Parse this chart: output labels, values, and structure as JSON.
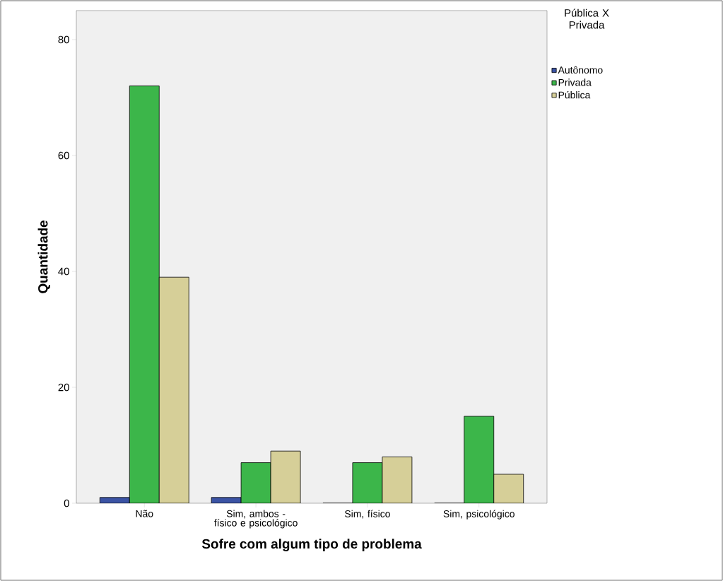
{
  "chart_data": {
    "type": "bar",
    "xlabel": "Sofre com algum tipo de problema",
    "ylabel": "Quantidade",
    "legend_title": "Pública X Privada",
    "categories": [
      "Não",
      "Sim, ambos - físico e psicológico",
      "Sim, físico",
      "Sim, psicológico"
    ],
    "series": [
      {
        "name": "Autônomo",
        "color": "#3b53a4",
        "values": [
          1,
          1,
          0,
          0
        ]
      },
      {
        "name": "Privada",
        "color": "#3cb64a",
        "values": [
          72,
          7,
          7,
          15
        ]
      },
      {
        "name": "Pública",
        "color": "#d6cf98",
        "values": [
          39,
          9,
          8,
          5
        ]
      }
    ],
    "ylim": [
      0,
      85
    ],
    "yticks": [
      0,
      20,
      40,
      60,
      80
    ],
    "grid": false,
    "legend": "top right"
  }
}
